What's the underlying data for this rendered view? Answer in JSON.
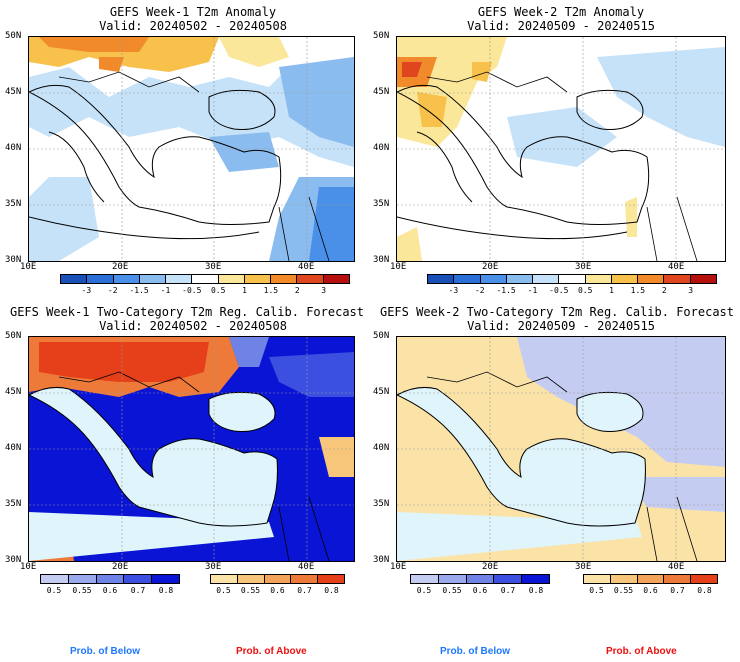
{
  "panels": [
    {
      "title": "GEFS Week-1 T2m Anomaly",
      "valid": "Valid: 20240502 - 20240508"
    },
    {
      "title": "GEFS Week-2 T2m Anomaly",
      "valid": "Valid: 20240509 - 20240515"
    },
    {
      "title": "GEFS Week-1 Two-Category T2m Reg. Calib. Forecast",
      "valid": "Valid: 20240502 - 20240508"
    },
    {
      "title": "GEFS Week-2 Two-Category T2m Reg. Calib. Forecast",
      "valid": "Valid: 20240509 - 20240515"
    }
  ],
  "axes": {
    "lat_labels": [
      "50N",
      "45N",
      "40N",
      "35N",
      "30N"
    ],
    "lon_labels": [
      "10E",
      "20E",
      "30E",
      "40E"
    ]
  },
  "anomaly_colorbar": {
    "labels": [
      "-3",
      "-2",
      "-1.5",
      "-1",
      "-0.5",
      "0.5",
      "1",
      "1.5",
      "2",
      "3"
    ],
    "colors": [
      "#1a4fb8",
      "#2a6fd6",
      "#4a90e8",
      "#8bbcf0",
      "#c6e2f8",
      "#ffffff",
      "#fbe79a",
      "#f8c14c",
      "#f08a2a",
      "#e0461e",
      "#b5100e"
    ]
  },
  "prob_colorbars": {
    "below": {
      "labels": [
        "0.5",
        "0.55",
        "0.6",
        "0.7",
        "0.8"
      ],
      "colors": [
        "#c4ccf2",
        "#9aa8ec",
        "#6f82e6",
        "#3b4fe0",
        "#0a14d4"
      ],
      "caption": "Prob. of Below",
      "caption_color": "#1e78ff"
    },
    "above": {
      "labels": [
        "0.5",
        "0.55",
        "0.6",
        "0.7",
        "0.8"
      ],
      "colors": [
        "#fbe3a8",
        "#f8c67a",
        "#f3a45a",
        "#ee7a3a",
        "#e6401a"
      ],
      "caption": "Prob. of Above",
      "caption_color": "#ee1010"
    }
  },
  "colors": {
    "sea": "#dff4fb",
    "land_neutral": "#ffffff",
    "coast": "#000000"
  }
}
